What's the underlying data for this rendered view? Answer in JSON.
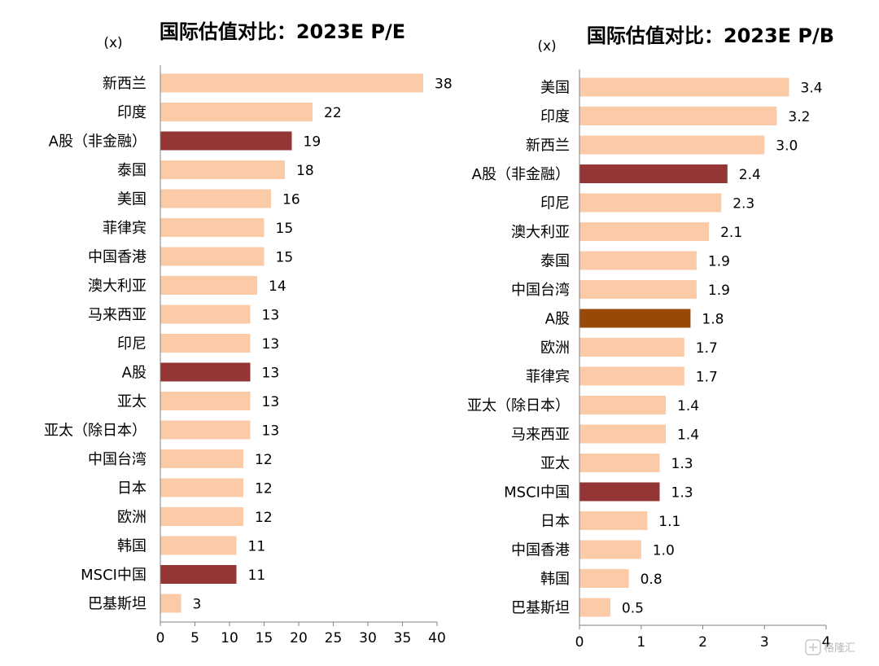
{
  "colors": {
    "default_bar": "#FBCBA7",
    "highlight_bar": "#943634",
    "a_share_bar": "#984807",
    "axis": "#808080"
  },
  "chart_data": [
    {
      "type": "bar",
      "orientation": "horizontal",
      "title": "国际估值对比：2023E P/E",
      "unit_label": "(x)",
      "categories": [
        "新西兰",
        "印度",
        "A股（非金融）",
        "泰国",
        "美国",
        "菲律宾",
        "中国香港",
        "澳大利亚",
        "马来西亚",
        "印尼",
        "A股",
        "亚太",
        "亚太（除日本）",
        "中国台湾",
        "日本",
        "欧洲",
        "韩国",
        "MSCI中国",
        "巴基斯坦"
      ],
      "values": [
        38,
        22,
        19,
        18,
        16,
        15,
        15,
        14,
        13,
        13,
        13,
        13,
        13,
        12,
        12,
        12,
        11,
        11,
        3
      ],
      "value_labels": [
        "38",
        "22",
        "19",
        "18",
        "16",
        "15",
        "15",
        "14",
        "13",
        "13",
        "13",
        "13",
        "13",
        "12",
        "12",
        "12",
        "11",
        "11",
        "3"
      ],
      "highlight": [
        false,
        false,
        true,
        false,
        false,
        false,
        false,
        false,
        false,
        false,
        true,
        false,
        false,
        false,
        false,
        false,
        false,
        true,
        false
      ],
      "xlim": [
        0,
        40
      ],
      "xticks": [
        "0",
        "5",
        "10",
        "15",
        "20",
        "25",
        "30",
        "35",
        "40"
      ],
      "grid": false,
      "legend": "none"
    },
    {
      "type": "bar",
      "orientation": "horizontal",
      "title": "国际估值对比：2023E P/B",
      "unit_label": "(x)",
      "categories": [
        "美国",
        "印度",
        "新西兰",
        "A股（非金融）",
        "印尼",
        "澳大利亚",
        "泰国",
        "中国台湾",
        "A股",
        "欧洲",
        "菲律宾",
        "亚太（除日本）",
        "马来西亚",
        "亚太",
        "MSCI中国",
        "日本",
        "中国香港",
        "韩国",
        "巴基斯坦"
      ],
      "values": [
        3.4,
        3.2,
        3.0,
        2.4,
        2.3,
        2.1,
        1.9,
        1.9,
        1.8,
        1.7,
        1.7,
        1.4,
        1.4,
        1.3,
        1.3,
        1.1,
        1.0,
        0.8,
        0.5
      ],
      "value_labels": [
        "3.4",
        "3.2",
        "3.0",
        "2.4",
        "2.3",
        "2.1",
        "1.9",
        "1.9",
        "1.8",
        "1.7",
        "1.7",
        "1.4",
        "1.4",
        "1.3",
        "1.3",
        "1.1",
        "1.0",
        "0.8",
        "0.5"
      ],
      "highlight": [
        false,
        false,
        false,
        true,
        false,
        false,
        false,
        false,
        "a_share",
        false,
        false,
        false,
        false,
        false,
        true,
        false,
        false,
        false,
        false
      ],
      "xlim": [
        0,
        4
      ],
      "xticks": [
        "0",
        "1",
        "2",
        "3",
        "4"
      ],
      "grid": false,
      "legend": "none"
    }
  ],
  "watermark": {
    "text": "格隆汇",
    "icon": "glh-logo-icon"
  }
}
